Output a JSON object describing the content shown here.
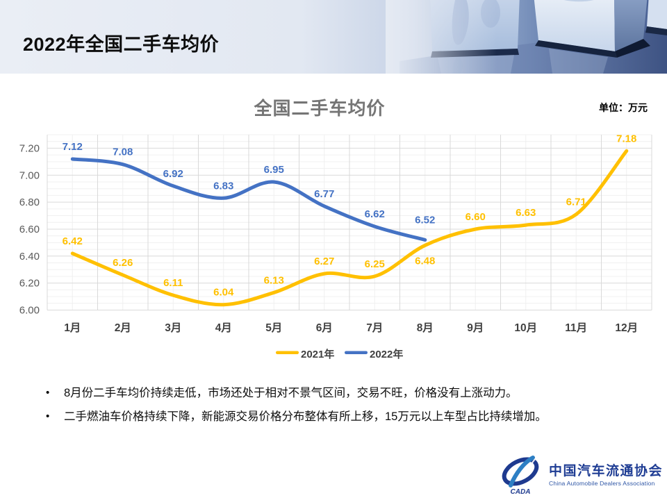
{
  "header": {
    "title": "2022年全国二手车均价"
  },
  "chart_data": {
    "type": "line",
    "title": "全国二手车均价",
    "unit_label": "单位：万元",
    "categories": [
      "1月",
      "2月",
      "3月",
      "4月",
      "5月",
      "6月",
      "7月",
      "8月",
      "9月",
      "10月",
      "11月",
      "12月"
    ],
    "series": [
      {
        "name": "2021年",
        "color": "#FFC000",
        "values": [
          6.42,
          6.26,
          6.11,
          6.04,
          6.13,
          6.27,
          6.25,
          6.48,
          6.6,
          6.63,
          6.71,
          7.18
        ],
        "label_offsets": {
          "7": 27
        }
      },
      {
        "name": "2022年",
        "color": "#4472C4",
        "values": [
          7.12,
          7.08,
          6.92,
          6.83,
          6.95,
          6.77,
          6.62,
          6.52
        ],
        "label_offsets": {
          "7": -24
        }
      }
    ],
    "ylim": [
      6.0,
      7.3
    ],
    "ytick_labels": [
      "6.00",
      "6.20",
      "6.40",
      "6.60",
      "6.80",
      "7.00",
      "7.20"
    ],
    "major_unit": 0.2,
    "minor_unit": 0.05,
    "grid": true,
    "legend_position": "bottom",
    "colors": {
      "major_grid": "#D9D9D9",
      "minor_grid": "#F0F0F0",
      "axis_text": "#595959",
      "category_text": "#404040",
      "legend_text": "#404040"
    }
  },
  "bullets": {
    "marker": "•",
    "items": [
      "8月份二手车均价持续走低，市场还处于相对不景气区间，交易不旺，价格没有上涨动力。",
      "二手燃油车价格持续下降，新能源交易价格分布整体有所上移，15万元以上车型占比持续增加。"
    ]
  },
  "logo": {
    "mark": "CADA",
    "name_cn": "中国汽车流通协会",
    "name_en": "China Automobile Dealers Association"
  }
}
